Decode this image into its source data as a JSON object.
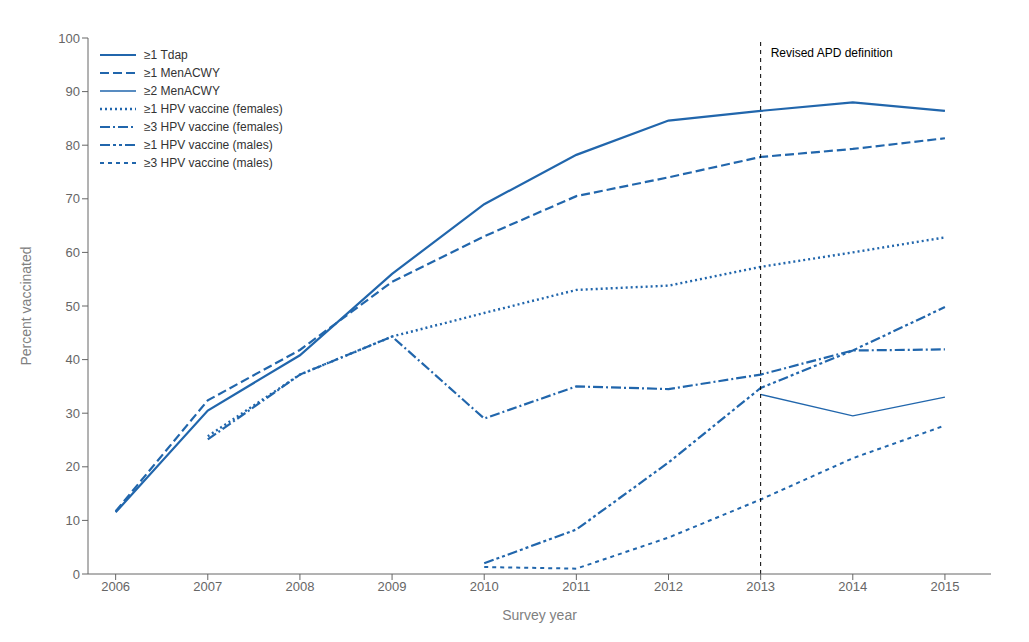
{
  "chart_data": {
    "type": "line",
    "color": "#2166ac",
    "xlabel": "Survey year",
    "ylabel": "Percent vaccinated",
    "x": [
      2006,
      2007,
      2008,
      2009,
      2010,
      2011,
      2012,
      2013,
      2014,
      2015
    ],
    "series": [
      {
        "name": "≥1 Tdap",
        "line_style": "solid",
        "values": [
          11.5,
          30.5,
          40.8,
          56.0,
          69.0,
          78.2,
          84.6,
          86.4,
          88.0,
          86.4
        ]
      },
      {
        "name": "≥1 MenACWY",
        "line_style": "dashed",
        "values": [
          11.7,
          32.4,
          41.8,
          54.5,
          63.0,
          70.5,
          74.0,
          77.8,
          79.3,
          81.3
        ]
      },
      {
        "name": "≥2 MenACWY",
        "line_style": "thin",
        "values": [
          null,
          null,
          null,
          null,
          null,
          null,
          null,
          33.5,
          29.5,
          33.0
        ]
      },
      {
        "name": "≥1 HPV vaccine (females)",
        "line_style": "dotted",
        "values": [
          null,
          25.7,
          37.2,
          44.3,
          48.7,
          53.0,
          53.8,
          57.3,
          60.0,
          62.8
        ]
      },
      {
        "name": "≥3 HPV vaccine (females)",
        "line_style": "dashdot",
        "values": [
          null,
          25.1,
          37.2,
          44.3,
          29.0,
          35.0,
          34.5,
          37.2,
          41.7,
          41.9
        ]
      },
      {
        "name": "≥1 HPV vaccine (males)",
        "line_style": "dashdotdot",
        "values": [
          null,
          null,
          null,
          null,
          2.0,
          8.3,
          20.8,
          34.7,
          41.7,
          49.8
        ]
      },
      {
        "name": "≥3 HPV vaccine (males)",
        "line_style": "shortdash",
        "values": [
          null,
          null,
          null,
          null,
          1.3,
          1.0,
          6.8,
          13.9,
          21.6,
          27.7
        ]
      }
    ],
    "vline_x": 2013,
    "annotation": "Revised APD definition",
    "xlim": [
      2005.7,
      2015.5
    ],
    "ylim": [
      0,
      100
    ],
    "xticks": [
      2006,
      2007,
      2008,
      2009,
      2010,
      2011,
      2012,
      2013,
      2014,
      2015
    ],
    "yticks": [
      0,
      10,
      20,
      30,
      40,
      50,
      60,
      70,
      80,
      90,
      100
    ],
    "grid": false,
    "legend": "upper left"
  }
}
